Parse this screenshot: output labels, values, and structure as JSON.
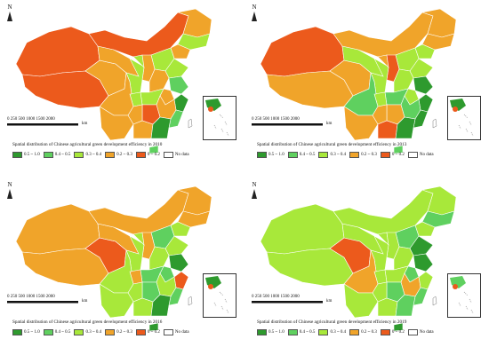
{
  "colors": {
    "c1": "#2e9a2e",
    "c2": "#5fd05f",
    "c3": "#a8e83a",
    "c4": "#f0a42a",
    "c5": "#ec5a1c",
    "nodata": "#ffffff"
  },
  "legend": [
    {
      "label": "0.5 ~ 1.0",
      "color_key": "c1"
    },
    {
      "label": "0.4 ~ 0.5",
      "color_key": "c2"
    },
    {
      "label": "0.3 ~ 0.4",
      "color_key": "c3"
    },
    {
      "label": "0.2 ~ 0.3",
      "color_key": "c4"
    },
    {
      "label": "0 ~ 0.2",
      "color_key": "c5"
    },
    {
      "label": "No data",
      "color_key": "nodata"
    }
  ],
  "scale": {
    "ticks": "0  250 500     1000     1500     2000",
    "unit": "km"
  },
  "north_label": "N",
  "panels": [
    {
      "id": "2010",
      "caption": "Spatial distribution of Chinese agricultural green development efficiency in 2010",
      "fills": {
        "xinjiang": "c5",
        "tibet": "c5",
        "qinghai": "c4",
        "gansu": "c4",
        "innermongolia": "c5",
        "heilongjiang": "c4",
        "jilin": "c3",
        "liaoning": "c4",
        "hebei": "c3",
        "shanxi": "c4",
        "shaanxi": "c3",
        "sichuan": "c4",
        "yunnan": "c4",
        "guangxi": "c4",
        "guangdong": "c1",
        "hunan": "c5",
        "hubei": "c3",
        "henan": "c4",
        "shandong": "c3",
        "jiangsu": "c2",
        "zhejiang": "c1",
        "anhui": "c4",
        "jiangxi": "c4",
        "fujian": "c2",
        "guizhou": "c4",
        "chongqing": "c3",
        "hainan": "c2",
        "ningxia": "c3"
      }
    },
    {
      "id": "2013",
      "caption": "Spatial distribution of Chinese agricultural green development efficiency in 2013",
      "fills": {
        "xinjiang": "c5",
        "tibet": "c4",
        "qinghai": "c4",
        "gansu": "c3",
        "innermongolia": "c4",
        "heilongjiang": "c4",
        "jilin": "c4",
        "liaoning": "c3",
        "hebei": "c3",
        "shanxi": "c5",
        "shaanxi": "c3",
        "sichuan": "c2",
        "yunnan": "c4",
        "guangxi": "c5",
        "guangdong": "c1",
        "hunan": "c4",
        "hubei": "c2",
        "henan": "c3",
        "shandong": "c3",
        "jiangsu": "c1",
        "zhejiang": "c1",
        "anhui": "c3",
        "jiangxi": "c2",
        "fujian": "c1",
        "guizhou": "c4",
        "chongqing": "c3",
        "hainan": "c2",
        "ningxia": "c4"
      }
    },
    {
      "id": "2016",
      "caption": "Spatial distribution of Chinese agricultural green development efficiency in 2016",
      "fills": {
        "xinjiang": "c4",
        "tibet": "c4",
        "qinghai": "c5",
        "gansu": "c4",
        "innermongolia": "c4",
        "heilongjiang": "c4",
        "jilin": "c4",
        "liaoning": "c3",
        "hebei": "c2",
        "shanxi": "c4",
        "shaanxi": "c3",
        "sichuan": "c3",
        "yunnan": "c3",
        "guangxi": "c3",
        "guangdong": "c1",
        "hunan": "c2",
        "hubei": "c2",
        "henan": "c3",
        "shandong": "c3",
        "jiangsu": "c1",
        "zhejiang": "c5",
        "anhui": "c2",
        "jiangxi": "c3",
        "fujian": "c2",
        "guizhou": "c3",
        "chongqing": "c4",
        "hainan": "c1",
        "ningxia": "c3"
      }
    },
    {
      "id": "2019",
      "caption": "Spatial distribution of Chinese agricultural green development efficiency in 2019",
      "fills": {
        "xinjiang": "c3",
        "tibet": "c3",
        "qinghai": "c5",
        "gansu": "c3",
        "innermongolia": "c3",
        "heilongjiang": "c3",
        "jilin": "c2",
        "liaoning": "c3",
        "hebei": "c2",
        "shanxi": "c3",
        "shaanxi": "c3",
        "sichuan": "c4",
        "yunnan": "c3",
        "guangxi": "c3",
        "guangdong": "c2",
        "hunan": "c2",
        "hubei": "c3",
        "henan": "c3",
        "shandong": "c1",
        "jiangsu": "c1",
        "zhejiang": "c3",
        "anhui": "c2",
        "jiangxi": "c4",
        "fujian": "c2",
        "guizhou": "c3",
        "chongqing": "c3",
        "hainan": "c1",
        "ningxia": "c3"
      }
    }
  ]
}
